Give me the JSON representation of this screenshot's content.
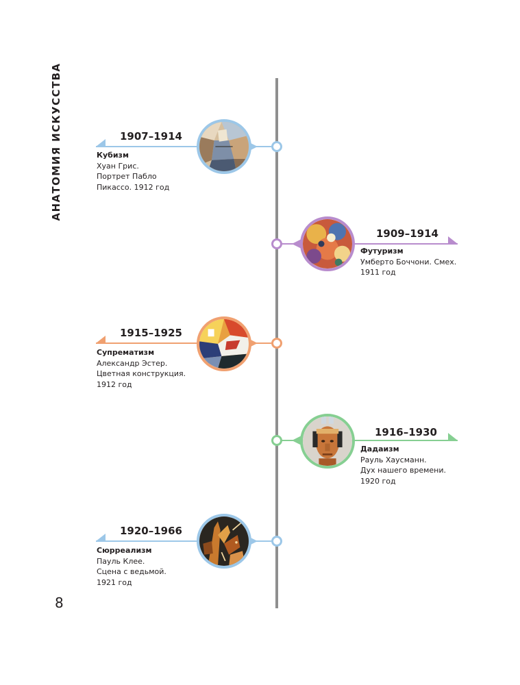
{
  "book_title": "АНАТОМИЯ ИСКУССТВА",
  "page_number": "8",
  "colors": {
    "axis": "#8f8f8f",
    "cubism": "#9cc7e8",
    "futurism": "#b88ccd",
    "suprematism": "#f0a070",
    "dadaism": "#86cf92",
    "surrealism": "#9cc7e8"
  },
  "timeline": [
    {
      "years": "1907–1914",
      "movement": "Кубизм",
      "lines": [
        "Хуан Грис.",
        "Портрет Пабло",
        "Пикассо. 1912 год"
      ],
      "side": "left",
      "color": "#9cc7e8",
      "image_icon": "cubist-portrait-icon"
    },
    {
      "years": "1909–1914",
      "movement": "Футуризм",
      "lines": [
        "Умберто Боччони. Смех.",
        "1911 год"
      ],
      "side": "right",
      "color": "#b88ccd",
      "image_icon": "futurist-painting-icon"
    },
    {
      "years": "1915–1925",
      "movement": "Супрематизм",
      "lines": [
        "Александр Эстер.",
        "Цветная конструкция.",
        "1912 год"
      ],
      "side": "left",
      "color": "#f0a070",
      "image_icon": "suprematist-composition-icon"
    },
    {
      "years": "1916–1930",
      "movement": "Дадаизм",
      "lines": [
        "Рауль Хаусманн.",
        "Дух нашего времени.",
        "1920 год"
      ],
      "side": "right",
      "color": "#86cf92",
      "image_icon": "dada-head-sculpture-icon"
    },
    {
      "years": "1920–1966",
      "movement": "Сюрреализм",
      "lines": [
        "Пауль Клее.",
        "Сцена с ведьмой.",
        "1921 год"
      ],
      "side": "left",
      "color": "#9cc7e8",
      "image_icon": "surrealist-witch-scene-icon"
    }
  ]
}
